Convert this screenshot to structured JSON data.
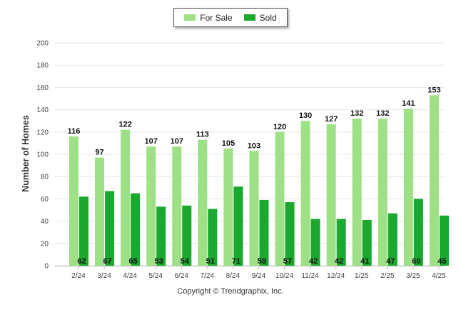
{
  "legend": {
    "items": [
      {
        "label": "For Sale",
        "color": "#9ee085"
      },
      {
        "label": "Sold",
        "color": "#1aa82e"
      }
    ]
  },
  "credit": "Copyright © Trendgraphix, Inc.",
  "chart_data": {
    "type": "bar",
    "title": "",
    "xlabel": "",
    "ylabel": "Number of Homes",
    "ylim": [
      0,
      200
    ],
    "yticks": [
      0,
      20,
      40,
      60,
      80,
      100,
      120,
      140,
      160,
      180,
      200
    ],
    "grid": true,
    "legend_position": "top-center",
    "categories": [
      "2/24",
      "3/24",
      "4/24",
      "5/24",
      "6/24",
      "7/24",
      "8/24",
      "9/24",
      "10/24",
      "11/24",
      "12/24",
      "1/25",
      "2/25",
      "3/25",
      "4/25"
    ],
    "series": [
      {
        "name": "For Sale",
        "color": "#9ee085",
        "values": [
          116,
          97,
          122,
          107,
          107,
          113,
          105,
          103,
          120,
          130,
          127,
          132,
          132,
          141,
          153
        ]
      },
      {
        "name": "Sold",
        "color": "#1aa82e",
        "values": [
          62,
          67,
          65,
          53,
          54,
          51,
          71,
          59,
          57,
          42,
          42,
          41,
          47,
          60,
          45
        ]
      }
    ]
  }
}
